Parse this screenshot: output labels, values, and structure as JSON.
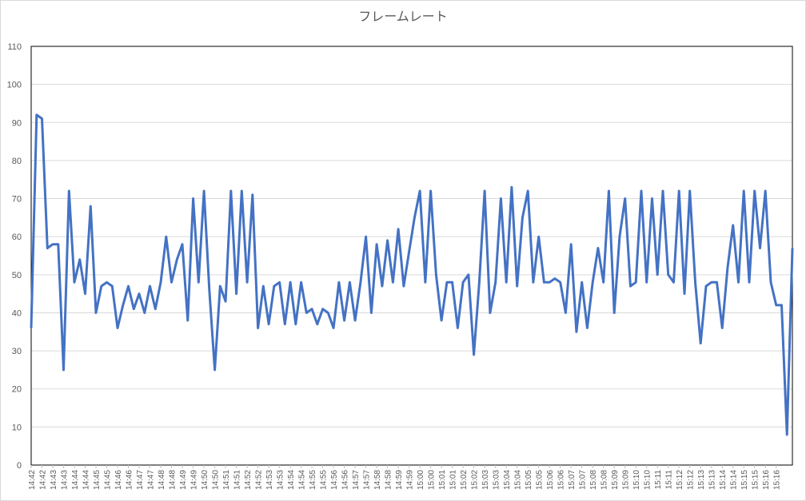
{
  "chart_data": {
    "type": "line",
    "title": "フレームレート",
    "series": [
      {
        "name": "フレームレート",
        "color": "#4472c4",
        "values": [
          36,
          92,
          91,
          57,
          58,
          58,
          25,
          72,
          48,
          54,
          45,
          68,
          40,
          47,
          48,
          47,
          36,
          42,
          47,
          41,
          45,
          40,
          47,
          41,
          48,
          60,
          48,
          54,
          58,
          38,
          70,
          48,
          72,
          46,
          25,
          47,
          43,
          72,
          45,
          72,
          48,
          71,
          36,
          47,
          37,
          47,
          48,
          37,
          48,
          37,
          48,
          40,
          41,
          37,
          41,
          40,
          36,
          48,
          38,
          48,
          38,
          48,
          60,
          40,
          58,
          47,
          59,
          48,
          62,
          47,
          56,
          65,
          72,
          48,
          72,
          50,
          38,
          48,
          48,
          36,
          48,
          50,
          29,
          48,
          72,
          40,
          48,
          70,
          48,
          73,
          47,
          65,
          72,
          48,
          60,
          48,
          48,
          49,
          48,
          40,
          58,
          35,
          48,
          36,
          48,
          57,
          48,
          72,
          40,
          60,
          70,
          47,
          48,
          72,
          48,
          70,
          50,
          72,
          50,
          48,
          72,
          45,
          72,
          48,
          32,
          47,
          48,
          48,
          36,
          52,
          63,
          48,
          72,
          48,
          72,
          57,
          72,
          48,
          42,
          42,
          8,
          57
        ]
      }
    ],
    "xlim": [
      0,
      141
    ],
    "xticks": [
      {
        "value": 0,
        "label": "14:42"
      },
      {
        "value": 2,
        "label": "14:42"
      },
      {
        "value": 4,
        "label": "14:43"
      },
      {
        "value": 6,
        "label": "14:43"
      },
      {
        "value": 8,
        "label": "14:44"
      },
      {
        "value": 10,
        "label": "14:44"
      },
      {
        "value": 12,
        "label": "14:45"
      },
      {
        "value": 14,
        "label": "14:45"
      },
      {
        "value": 16,
        "label": "14:46"
      },
      {
        "value": 18,
        "label": "14:46"
      },
      {
        "value": 20,
        "label": "14:47"
      },
      {
        "value": 22,
        "label": "14:47"
      },
      {
        "value": 24,
        "label": "14:48"
      },
      {
        "value": 26,
        "label": "14:48"
      },
      {
        "value": 28,
        "label": "14:49"
      },
      {
        "value": 30,
        "label": "14:49"
      },
      {
        "value": 32,
        "label": "14:50"
      },
      {
        "value": 34,
        "label": "14:50"
      },
      {
        "value": 36,
        "label": "14:51"
      },
      {
        "value": 38,
        "label": "14:51"
      },
      {
        "value": 40,
        "label": "14:52"
      },
      {
        "value": 42,
        "label": "14:52"
      },
      {
        "value": 44,
        "label": "14:53"
      },
      {
        "value": 46,
        "label": "14:53"
      },
      {
        "value": 48,
        "label": "14:54"
      },
      {
        "value": 50,
        "label": "14:54"
      },
      {
        "value": 52,
        "label": "14:55"
      },
      {
        "value": 54,
        "label": "14:55"
      },
      {
        "value": 56,
        "label": "14:56"
      },
      {
        "value": 58,
        "label": "14:56"
      },
      {
        "value": 60,
        "label": "14:57"
      },
      {
        "value": 62,
        "label": "14:57"
      },
      {
        "value": 64,
        "label": "14:58"
      },
      {
        "value": 66,
        "label": "14:58"
      },
      {
        "value": 68,
        "label": "14:59"
      },
      {
        "value": 70,
        "label": "14:59"
      },
      {
        "value": 72,
        "label": "15:00"
      },
      {
        "value": 74,
        "label": "15:00"
      },
      {
        "value": 76,
        "label": "15:01"
      },
      {
        "value": 78,
        "label": "15:01"
      },
      {
        "value": 80,
        "label": "15:02"
      },
      {
        "value": 82,
        "label": "15:02"
      },
      {
        "value": 84,
        "label": "15:03"
      },
      {
        "value": 86,
        "label": "15:03"
      },
      {
        "value": 88,
        "label": "15:04"
      },
      {
        "value": 90,
        "label": "15:04"
      },
      {
        "value": 92,
        "label": "15:05"
      },
      {
        "value": 94,
        "label": "15:05"
      },
      {
        "value": 96,
        "label": "15:06"
      },
      {
        "value": 98,
        "label": "15:06"
      },
      {
        "value": 100,
        "label": "15:07"
      },
      {
        "value": 102,
        "label": "15:07"
      },
      {
        "value": 104,
        "label": "15:08"
      },
      {
        "value": 106,
        "label": "15:08"
      },
      {
        "value": 108,
        "label": "15:09"
      },
      {
        "value": 110,
        "label": "15:09"
      },
      {
        "value": 112,
        "label": "15:10"
      },
      {
        "value": 114,
        "label": "15:10"
      },
      {
        "value": 116,
        "label": "15:11"
      },
      {
        "value": 118,
        "label": "15:11"
      },
      {
        "value": 120,
        "label": "15:12"
      },
      {
        "value": 122,
        "label": "15:12"
      },
      {
        "value": 124,
        "label": "15:13"
      },
      {
        "value": 126,
        "label": "15:13"
      },
      {
        "value": 128,
        "label": "15:14"
      },
      {
        "value": 130,
        "label": "15:14"
      },
      {
        "value": 132,
        "label": "15:15"
      },
      {
        "value": 134,
        "label": "15:15"
      },
      {
        "value": 136,
        "label": "15:16"
      },
      {
        "value": 138,
        "label": "15:16"
      }
    ],
    "ylim": [
      0,
      110
    ],
    "yticks": [
      0,
      10,
      20,
      30,
      40,
      50,
      60,
      70,
      80,
      90,
      100,
      110
    ],
    "grid": true
  }
}
